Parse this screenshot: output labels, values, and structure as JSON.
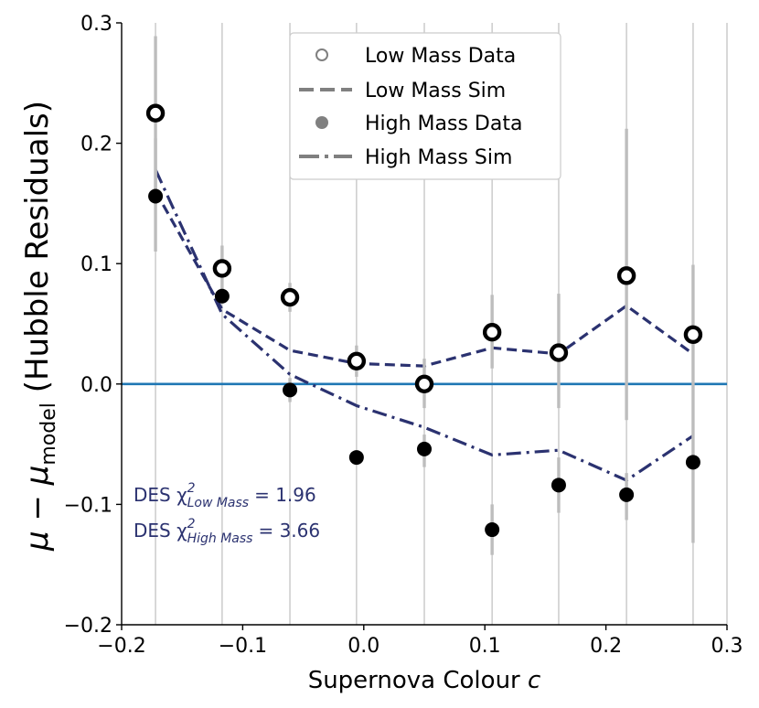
{
  "chart_data": {
    "type": "scatter",
    "title": "",
    "xlabel": "Supernova Colour c",
    "ylabel": "μ − μmodel (Hubble Residuals)",
    "ylabel_parts": {
      "main": "μ − μ",
      "sub": "model",
      "tail": " (Hubble Residuals)"
    },
    "xlabel_parts": {
      "main": "Supernova Colour ",
      "italic": "c"
    },
    "xlim": [
      -0.2,
      0.3
    ],
    "ylim": [
      -0.2,
      0.3
    ],
    "x_ticks": [
      -0.2,
      -0.1,
      0.0,
      0.1,
      0.2,
      0.3
    ],
    "x_tick_labels": [
      "−0.2",
      "−0.1",
      "0.0",
      "0.1",
      "0.2",
      "0.3"
    ],
    "y_ticks": [
      -0.2,
      -0.1,
      0.0,
      0.1,
      0.2,
      0.3
    ],
    "y_tick_labels": [
      "−0.2",
      "−0.1",
      "0.0",
      "0.1",
      "0.2",
      "0.3"
    ],
    "vertical_gridlines_x": [
      -0.172,
      -0.117,
      -0.061,
      -0.006,
      0.05,
      0.106,
      0.161,
      0.217,
      0.272,
      0.3
    ],
    "reference_line_y": 0.0,
    "colors": {
      "sim": "#2b3270",
      "reference": "#1f77b4",
      "errorbar": "#bdbdbd",
      "data": "#000000",
      "grid": "#c8c8c8",
      "annotation": "#2b3270",
      "legend_marker": "#808080"
    },
    "series": [
      {
        "name": "Low Mass Data",
        "kind": "points-open",
        "x": [
          -0.172,
          -0.117,
          -0.061,
          -0.006,
          0.05,
          0.106,
          0.161,
          0.217,
          0.272
        ],
        "y": [
          0.225,
          0.096,
          0.072,
          0.019,
          0.0,
          0.043,
          0.026,
          0.09,
          0.041
        ],
        "err_lo": [
          0.115,
          0.021,
          0.012,
          0.013,
          0.02,
          0.03,
          0.046,
          0.12,
          0.056
        ],
        "err_hi": [
          0.064,
          0.019,
          0.012,
          0.013,
          0.021,
          0.031,
          0.049,
          0.122,
          0.058
        ]
      },
      {
        "name": "Low Mass Sim",
        "kind": "line-dashed",
        "x": [
          -0.172,
          -0.117,
          -0.061,
          -0.006,
          0.05,
          0.106,
          0.161,
          0.217,
          0.272
        ],
        "y": [
          0.16,
          0.062,
          0.028,
          0.017,
          0.015,
          0.03,
          0.025,
          0.065,
          0.025
        ]
      },
      {
        "name": "High Mass Data",
        "kind": "points-filled",
        "x": [
          -0.172,
          -0.117,
          -0.061,
          -0.006,
          0.05,
          0.106,
          0.161,
          0.217,
          0.272
        ],
        "y": [
          0.156,
          0.073,
          -0.005,
          -0.061,
          -0.054,
          -0.121,
          -0.084,
          -0.092,
          -0.065
        ],
        "err_lo": [
          0.0,
          0.0,
          0.01,
          0.0,
          0.015,
          0.021,
          0.023,
          0.021,
          0.067
        ],
        "err_hi": [
          0.048,
          0.0,
          0.01,
          0.0,
          0.012,
          0.021,
          0.023,
          0.018,
          0.05
        ]
      },
      {
        "name": "High Mass Sim",
        "kind": "line-dashdot",
        "x": [
          -0.172,
          -0.117,
          -0.061,
          -0.006,
          0.05,
          0.106,
          0.161,
          0.217,
          0.272
        ],
        "y": [
          0.178,
          0.058,
          0.008,
          -0.018,
          -0.036,
          -0.059,
          -0.055,
          -0.08,
          -0.043
        ]
      }
    ],
    "legend": {
      "placement": "top-center",
      "entries": [
        "Low Mass Data",
        "Low Mass Sim",
        "High Mass Data",
        "High Mass Sim"
      ]
    },
    "annotations": [
      {
        "prefix": "DES χ",
        "sup": "2",
        "sub": "Low Mass",
        "value": "= 1.96"
      },
      {
        "prefix": "DES χ",
        "sup": "2",
        "sub": "High Mass",
        "value": "= 3.66"
      }
    ]
  }
}
